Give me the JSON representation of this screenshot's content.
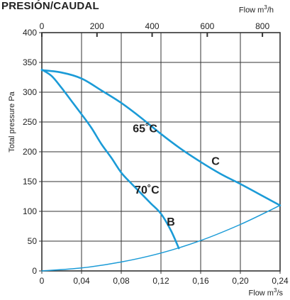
{
  "page": {
    "title": "PRESIÓN/CAUDAL"
  },
  "axes": {
    "top_label": {
      "text": "Flow m",
      "sup": "3",
      "suffix": "/h"
    },
    "bottom_label": {
      "text": "Flow m",
      "sup": "3",
      "suffix": "/s"
    },
    "y_label": "Total pressure Pa"
  },
  "colors": {
    "curve": "#1b9bd7",
    "grid": "#333333"
  },
  "chart_data": {
    "type": "line",
    "xlabel": "Flow m3/s",
    "x2label": "Flow m3/h",
    "ylabel": "Total pressure Pa",
    "xlim": [
      0,
      0.24
    ],
    "ylim": [
      0,
      400
    ],
    "x_ticks": [
      0,
      0.04,
      0.08,
      0.12,
      0.16,
      0.2,
      0.24
    ],
    "x_tick_labels": [
      "0",
      "0,04",
      "0,08",
      "0,12",
      "0,16",
      "0,20",
      "0,24"
    ],
    "x2_ticks": [
      0,
      200,
      400,
      600,
      800
    ],
    "x2_tick_labels": [
      "0",
      "200",
      "400",
      "600",
      "800"
    ],
    "y_ticks": [
      0,
      50,
      100,
      150,
      200,
      250,
      300,
      350,
      400
    ],
    "y_tick_labels": [
      "0",
      "50",
      "100",
      "150",
      "200",
      "250",
      "300",
      "350",
      "400"
    ],
    "grid": true,
    "series": [
      {
        "name": "C",
        "annotation": "65˚C",
        "x": [
          0,
          0.02,
          0.04,
          0.06,
          0.08,
          0.1,
          0.12,
          0.14,
          0.16,
          0.18,
          0.2,
          0.22,
          0.24
        ],
        "y": [
          337,
          333,
          323,
          303,
          282,
          257,
          230,
          205,
          183,
          163,
          146,
          128,
          110
        ]
      },
      {
        "name": "B",
        "annotation": "70˚C",
        "x": [
          0,
          0.01,
          0.02,
          0.03,
          0.04,
          0.05,
          0.06,
          0.07,
          0.08,
          0.09,
          0.1,
          0.11,
          0.12,
          0.13,
          0.138
        ],
        "y": [
          338,
          327,
          307,
          285,
          263,
          240,
          213,
          190,
          165,
          147,
          130,
          113,
          96,
          68,
          38
        ]
      },
      {
        "name": "",
        "annotation": "",
        "x": [
          0,
          0.04,
          0.08,
          0.12,
          0.16,
          0.2,
          0.24
        ],
        "y": [
          0,
          5,
          15,
          30,
          51,
          78,
          110
        ]
      }
    ],
    "labels": [
      {
        "text": "65˚C",
        "x": 0.104,
        "y": 233
      },
      {
        "text": "C",
        "x": 0.175,
        "y": 178
      },
      {
        "text": "70˚C",
        "x": 0.106,
        "y": 130
      },
      {
        "text": "B",
        "x": 0.13,
        "y": 76
      }
    ]
  }
}
